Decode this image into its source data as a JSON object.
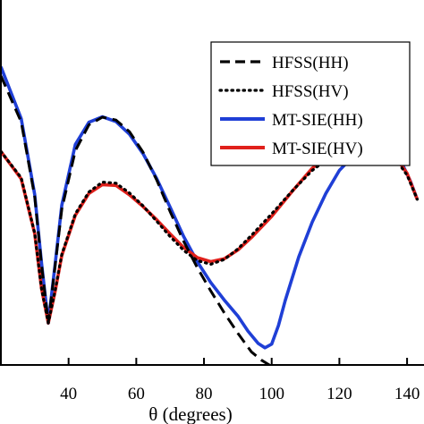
{
  "chart_data": {
    "type": "line",
    "xlabel": "θ (degrees)",
    "ylabel": "",
    "title": "",
    "xlim": [
      20,
      145
    ],
    "ylim": [
      0,
      1
    ],
    "x_ticks": [
      40,
      60,
      80,
      100,
      120,
      140
    ],
    "x_tick_labels": [
      "40",
      "60",
      "80",
      "100",
      "120",
      "140"
    ],
    "grid": false,
    "legend_position": "top-right",
    "series": [
      {
        "name": "HFSS(HH)",
        "color": "#000000",
        "style": "dashed",
        "x": [
          20,
          26,
          30,
          32,
          34,
          36,
          38,
          42,
          46,
          50,
          54,
          58,
          62,
          66,
          70,
          74,
          78,
          82,
          86,
          90,
          94,
          97,
          100
        ],
        "y": [
          0.792,
          0.666,
          0.461,
          0.276,
          0.115,
          0.269,
          0.427,
          0.587,
          0.658,
          0.679,
          0.671,
          0.639,
          0.583,
          0.507,
          0.42,
          0.339,
          0.267,
          0.203,
          0.143,
          0.087,
          0.036,
          0.013,
          -0.004
        ]
      },
      {
        "name": "HFSS(HV)",
        "color": "#000000",
        "style": "dotted",
        "x": [
          20,
          26,
          30,
          32,
          34,
          36,
          38,
          42,
          46,
          50,
          54,
          58,
          62,
          66,
          70,
          74,
          78,
          82,
          86,
          90,
          94,
          100,
          106,
          112,
          118,
          124,
          128,
          132,
          136,
          140,
          143
        ],
        "y": [
          0.585,
          0.513,
          0.361,
          0.209,
          0.115,
          0.203,
          0.303,
          0.414,
          0.474,
          0.501,
          0.498,
          0.471,
          0.436,
          0.394,
          0.352,
          0.314,
          0.286,
          0.276,
          0.289,
          0.318,
          0.355,
          0.414,
          0.476,
          0.533,
          0.575,
          0.596,
          0.601,
          0.593,
          0.572,
          0.52,
          0.454
        ]
      },
      {
        "name": "MT-SIE(HH)",
        "color": "#1f3fd6",
        "style": "solid",
        "x": [
          20,
          26,
          30,
          32,
          34,
          36,
          38,
          42,
          46,
          50,
          54,
          58,
          62,
          66,
          70,
          74,
          78,
          82,
          86,
          90,
          93,
          96,
          98,
          100,
          102,
          104,
          108,
          112,
          116,
          120,
          124,
          128,
          132,
          135,
          138,
          141,
          143
        ],
        "y": [
          0.817,
          0.675,
          0.467,
          0.28,
          0.115,
          0.273,
          0.438,
          0.604,
          0.665,
          0.68,
          0.667,
          0.632,
          0.579,
          0.511,
          0.432,
          0.352,
          0.283,
          0.226,
          0.178,
          0.134,
          0.093,
          0.059,
          0.047,
          0.057,
          0.108,
          0.177,
          0.296,
          0.392,
          0.47,
          0.533,
          0.571,
          0.589,
          0.592,
          0.585,
          0.562,
          0.503,
          0.454
        ]
      },
      {
        "name": "MT-SIE(HV)",
        "color": "#e0201b",
        "style": "solid",
        "x": [
          20,
          26,
          30,
          32,
          34,
          36,
          38,
          42,
          46,
          50,
          54,
          58,
          62,
          66,
          70,
          74,
          78,
          82,
          86,
          90,
          94,
          100,
          106,
          112,
          118,
          124,
          128,
          130,
          132,
          136,
          140,
          143
        ],
        "y": [
          0.585,
          0.51,
          0.36,
          0.21,
          0.115,
          0.2,
          0.3,
          0.41,
          0.47,
          0.494,
          0.492,
          0.466,
          0.434,
          0.398,
          0.359,
          0.322,
          0.294,
          0.283,
          0.291,
          0.315,
          0.349,
          0.407,
          0.475,
          0.539,
          0.583,
          0.605,
          0.61,
          0.609,
          0.601,
          0.578,
          0.525,
          0.454
        ]
      }
    ]
  }
}
